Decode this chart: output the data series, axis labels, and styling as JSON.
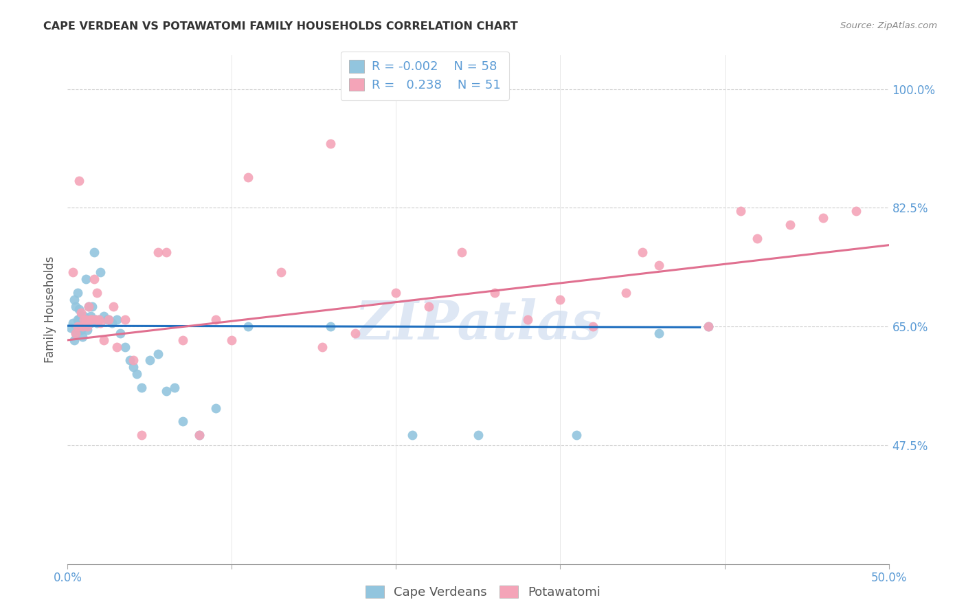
{
  "title": "CAPE VERDEAN VS POTAWATOMI FAMILY HOUSEHOLDS CORRELATION CHART",
  "source": "Source: ZipAtlas.com",
  "ylabel": "Family Households",
  "xlim": [
    0.0,
    0.5
  ],
  "ylim": [
    0.3,
    1.05
  ],
  "ytick_vals": [
    0.475,
    0.65,
    0.825,
    1.0
  ],
  "ytick_labels": [
    "47.5%",
    "65.0%",
    "82.5%",
    "100.0%"
  ],
  "ytick_grid": [
    0.475,
    0.65,
    0.825,
    1.0
  ],
  "xtick_vals": [
    0.0,
    0.1,
    0.2,
    0.3,
    0.4,
    0.5
  ],
  "xtick_labels": [
    "0.0%",
    "",
    "",
    "",
    "",
    "50.0%"
  ],
  "watermark": "ZIPatlas",
  "color_blue": "#92c5de",
  "color_pink": "#f4a4b8",
  "line_blue": "#1f6fbf",
  "line_pink": "#e07090",
  "blue_line_x": [
    0.0,
    0.385
  ],
  "blue_line_y": [
    0.651,
    0.649
  ],
  "pink_line_x": [
    0.0,
    0.5
  ],
  "pink_line_y": [
    0.63,
    0.77
  ],
  "blue_x": [
    0.002,
    0.003,
    0.004,
    0.004,
    0.005,
    0.005,
    0.006,
    0.006,
    0.007,
    0.007,
    0.007,
    0.008,
    0.008,
    0.008,
    0.009,
    0.009,
    0.01,
    0.01,
    0.01,
    0.011,
    0.011,
    0.012,
    0.012,
    0.013,
    0.013,
    0.014,
    0.014,
    0.015,
    0.016,
    0.017,
    0.018,
    0.019,
    0.02,
    0.022,
    0.024,
    0.025,
    0.027,
    0.03,
    0.032,
    0.035,
    0.038,
    0.04,
    0.042,
    0.045,
    0.05,
    0.055,
    0.06,
    0.065,
    0.07,
    0.08,
    0.09,
    0.11,
    0.16,
    0.21,
    0.25,
    0.31,
    0.36,
    0.39
  ],
  "blue_y": [
    0.648,
    0.655,
    0.63,
    0.69,
    0.68,
    0.64,
    0.7,
    0.66,
    0.66,
    0.645,
    0.675,
    0.66,
    0.645,
    0.665,
    0.655,
    0.635,
    0.66,
    0.65,
    0.665,
    0.66,
    0.72,
    0.66,
    0.645,
    0.68,
    0.66,
    0.665,
    0.655,
    0.68,
    0.76,
    0.66,
    0.655,
    0.66,
    0.73,
    0.665,
    0.66,
    0.66,
    0.655,
    0.66,
    0.64,
    0.62,
    0.6,
    0.59,
    0.58,
    0.56,
    0.6,
    0.61,
    0.555,
    0.56,
    0.51,
    0.49,
    0.53,
    0.65,
    0.65,
    0.49,
    0.49,
    0.49,
    0.64,
    0.65
  ],
  "pink_x": [
    0.003,
    0.005,
    0.006,
    0.007,
    0.008,
    0.009,
    0.01,
    0.011,
    0.012,
    0.013,
    0.014,
    0.015,
    0.016,
    0.017,
    0.018,
    0.019,
    0.02,
    0.022,
    0.025,
    0.028,
    0.03,
    0.035,
    0.04,
    0.055,
    0.07,
    0.09,
    0.11,
    0.13,
    0.155,
    0.175,
    0.2,
    0.22,
    0.24,
    0.26,
    0.28,
    0.3,
    0.32,
    0.34,
    0.36,
    0.39,
    0.42,
    0.44,
    0.46,
    0.48,
    0.045,
    0.06,
    0.08,
    0.1,
    0.16,
    0.35,
    0.41
  ],
  "pink_y": [
    0.73,
    0.64,
    0.65,
    0.865,
    0.67,
    0.65,
    0.66,
    0.66,
    0.65,
    0.68,
    0.66,
    0.66,
    0.72,
    0.66,
    0.7,
    0.66,
    0.655,
    0.63,
    0.66,
    0.68,
    0.62,
    0.66,
    0.6,
    0.76,
    0.63,
    0.66,
    0.87,
    0.73,
    0.62,
    0.64,
    0.7,
    0.68,
    0.76,
    0.7,
    0.66,
    0.69,
    0.65,
    0.7,
    0.74,
    0.65,
    0.78,
    0.8,
    0.81,
    0.82,
    0.49,
    0.76,
    0.49,
    0.63,
    0.92,
    0.76,
    0.82
  ]
}
